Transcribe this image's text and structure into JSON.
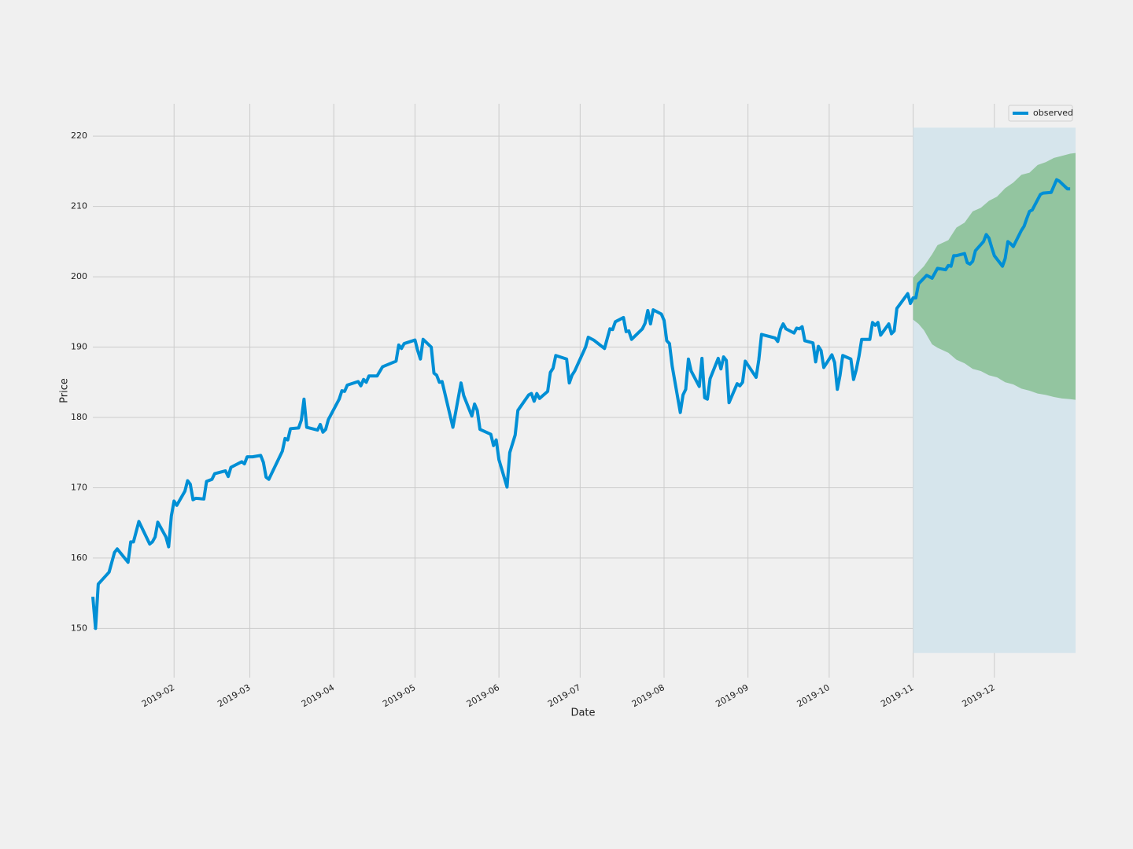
{
  "chart_data": {
    "type": "line",
    "x_label": "Date",
    "y_label": "Price",
    "x": [
      1,
      2,
      3,
      7,
      9,
      10,
      14,
      15,
      16,
      18,
      22,
      23,
      24,
      25,
      28,
      29,
      30,
      31,
      32,
      35,
      36,
      37,
      38,
      39,
      42,
      43,
      45,
      46,
      50,
      51,
      52,
      56,
      57,
      58,
      60,
      63,
      64,
      65,
      66,
      71,
      72,
      73,
      74,
      77,
      78,
      79,
      80,
      84,
      85,
      86,
      87,
      88,
      92,
      93,
      94,
      95,
      99,
      100,
      101,
      102,
      103,
      106,
      108,
      113,
      114,
      115,
      116,
      120,
      121,
      122,
      123,
      126,
      127,
      128,
      129,
      130,
      134,
      137,
      138,
      141,
      142,
      143,
      144,
      148,
      149,
      150,
      151,
      154,
      155,
      157,
      158,
      162,
      163,
      164,
      165,
      166,
      169,
      170,
      171,
      172,
      176,
      177,
      178,
      179,
      183,
      184,
      186,
      190,
      191,
      192,
      193,
      194,
      197,
      198,
      199,
      200,
      204,
      205,
      206,
      207,
      208,
      211,
      212,
      213,
      214,
      215,
      218,
      219,
      220,
      221,
      222,
      225,
      226,
      227,
      228,
      229,
      232,
      233,
      234,
      235,
      236,
      239,
      240,
      241,
      242,
      246,
      247,
      248,
      253,
      254,
      255,
      256,
      257,
      260,
      261,
      262,
      263,
      264,
      267,
      268,
      269,
      270,
      271,
      274,
      275,
      276,
      277,
      278,
      281,
      282,
      283,
      284,
      285,
      288,
      289,
      290,
      291,
      292,
      295,
      296,
      297,
      298,
      302,
      303,
      304,
      305,
      306,
      309,
      310,
      311,
      312,
      313,
      316,
      317,
      318,
      319,
      320,
      323,
      324,
      325,
      326,
      327,
      330,
      331,
      332,
      333,
      334,
      337,
      338,
      339,
      340,
      341,
      344,
      345,
      346,
      347,
      348,
      351,
      352,
      355,
      357,
      358,
      361,
      362
    ],
    "series": [
      {
        "name": "observed",
        "color": "#008fd5",
        "values": [
          154.5,
          150,
          156.3,
          158,
          160.8,
          161.3,
          159.4,
          162.3,
          162.3,
          165.2,
          162,
          162.3,
          163,
          165.1,
          163,
          161.6,
          166,
          168.1,
          167.5,
          169.5,
          171,
          170.5,
          168.3,
          168.5,
          168.4,
          170.9,
          171.2,
          172,
          172.4,
          171.6,
          172.9,
          173.7,
          173.4,
          174.4,
          174.4,
          174.6,
          173.6,
          171.5,
          171.2,
          175.2,
          177,
          176.8,
          178.4,
          178.5,
          179.6,
          182.6,
          178.6,
          178.2,
          179,
          177.9,
          178.3,
          179.7,
          182.6,
          183.8,
          183.7,
          184.6,
          185.1,
          184.5,
          185.4,
          185,
          185.9,
          185.9,
          187.2,
          188,
          190.3,
          189.8,
          190.5,
          191,
          189.5,
          188.3,
          191.1,
          190,
          186.3,
          186,
          185,
          185.1,
          178.6,
          184.9,
          183.1,
          180.2,
          181.9,
          181,
          178.3,
          177.6,
          176,
          176.8,
          174,
          170.1,
          175,
          177.5,
          181,
          183.2,
          183.4,
          182.3,
          183.4,
          182.7,
          183.7,
          186.4,
          187,
          188.8,
          188.3,
          184.9,
          186,
          186.6,
          190,
          191.4,
          191,
          189.8,
          191.2,
          192.6,
          192.5,
          193.6,
          194.2,
          192.2,
          192.3,
          191.1,
          192.6,
          193.4,
          195.2,
          193.3,
          195.3,
          194.7,
          193.8,
          190.9,
          190.5,
          187.3,
          180.7,
          183.2,
          184,
          188.3,
          186.6,
          184.4,
          188.4,
          182.8,
          182.6,
          185.5,
          188.4,
          186.9,
          188.6,
          188.1,
          182.1,
          184.8,
          184.5,
          185,
          188,
          185.7,
          188.2,
          191.8,
          191.3,
          190.8,
          192.5,
          193.3,
          192.6,
          192,
          192.7,
          192.6,
          192.9,
          190.9,
          190.6,
          187.9,
          190.1,
          189.5,
          187.1,
          188.9,
          187.8,
          184,
          186,
          188.8,
          188.3,
          185.4,
          186.8,
          188.7,
          191.1,
          191.1,
          193.5,
          193.1,
          193.5,
          191.7,
          193.3,
          191.9,
          192.3,
          195.5,
          197.6,
          196.2,
          197,
          197,
          199,
          200.2,
          200,
          199.8,
          200.5,
          201.2,
          201,
          201.6,
          201.5,
          203,
          203,
          203.3,
          202,
          201.8,
          202.2,
          203.7,
          205,
          206,
          205.5,
          204.2,
          203,
          201.5,
          202.6,
          205,
          204.7,
          204.3,
          206.6,
          207.2,
          208.3,
          209.3,
          209.5,
          211.7,
          211.9,
          212,
          213.8,
          213.6,
          212.5,
          212.5
        ]
      }
    ],
    "band": {
      "color": "#93c5a0",
      "x": [
        304,
        306,
        308,
        311,
        313,
        317,
        320,
        323,
        326,
        329,
        332,
        335,
        338,
        341,
        344,
        347,
        350,
        353,
        356,
        359,
        362,
        364
      ],
      "upper": [
        199.9,
        200.7,
        201.5,
        203.2,
        204.5,
        205.2,
        207,
        207.7,
        209.3,
        209.8,
        210.8,
        211.4,
        212.6,
        213.4,
        214.5,
        214.8,
        215.9,
        216.3,
        216.9,
        217.2,
        217.5,
        217.6
      ],
      "lower": [
        193.9,
        193.3,
        192.4,
        190.4,
        189.9,
        189.2,
        188.2,
        187.7,
        186.9,
        186.6,
        186,
        185.7,
        185,
        184.7,
        184.1,
        183.8,
        183.4,
        183.2,
        182.9,
        182.7,
        182.6,
        182.5
      ]
    },
    "shaded_region": {
      "color": "#d6e5ec",
      "x": [
        304,
        364
      ],
      "y": [
        146.5,
        221.2
      ]
    },
    "xlim": [
      1,
      364
    ],
    "ylim": [
      143,
      224.6
    ],
    "xticks": [
      {
        "value": 31,
        "label": "2019-02"
      },
      {
        "value": 59,
        "label": "2019-03"
      },
      {
        "value": 90,
        "label": "2019-04"
      },
      {
        "value": 120,
        "label": "2019-05"
      },
      {
        "value": 151,
        "label": "2019-06"
      },
      {
        "value": 181,
        "label": "2019-07"
      },
      {
        "value": 212,
        "label": "2019-08"
      },
      {
        "value": 243,
        "label": "2019-09"
      },
      {
        "value": 273,
        "label": "2019-10"
      },
      {
        "value": 304,
        "label": "2019-11"
      },
      {
        "value": 334,
        "label": "2019-12"
      }
    ],
    "yticks": [
      150,
      160,
      170,
      180,
      190,
      200,
      210,
      220
    ],
    "grid": true,
    "legend": "upper right"
  }
}
